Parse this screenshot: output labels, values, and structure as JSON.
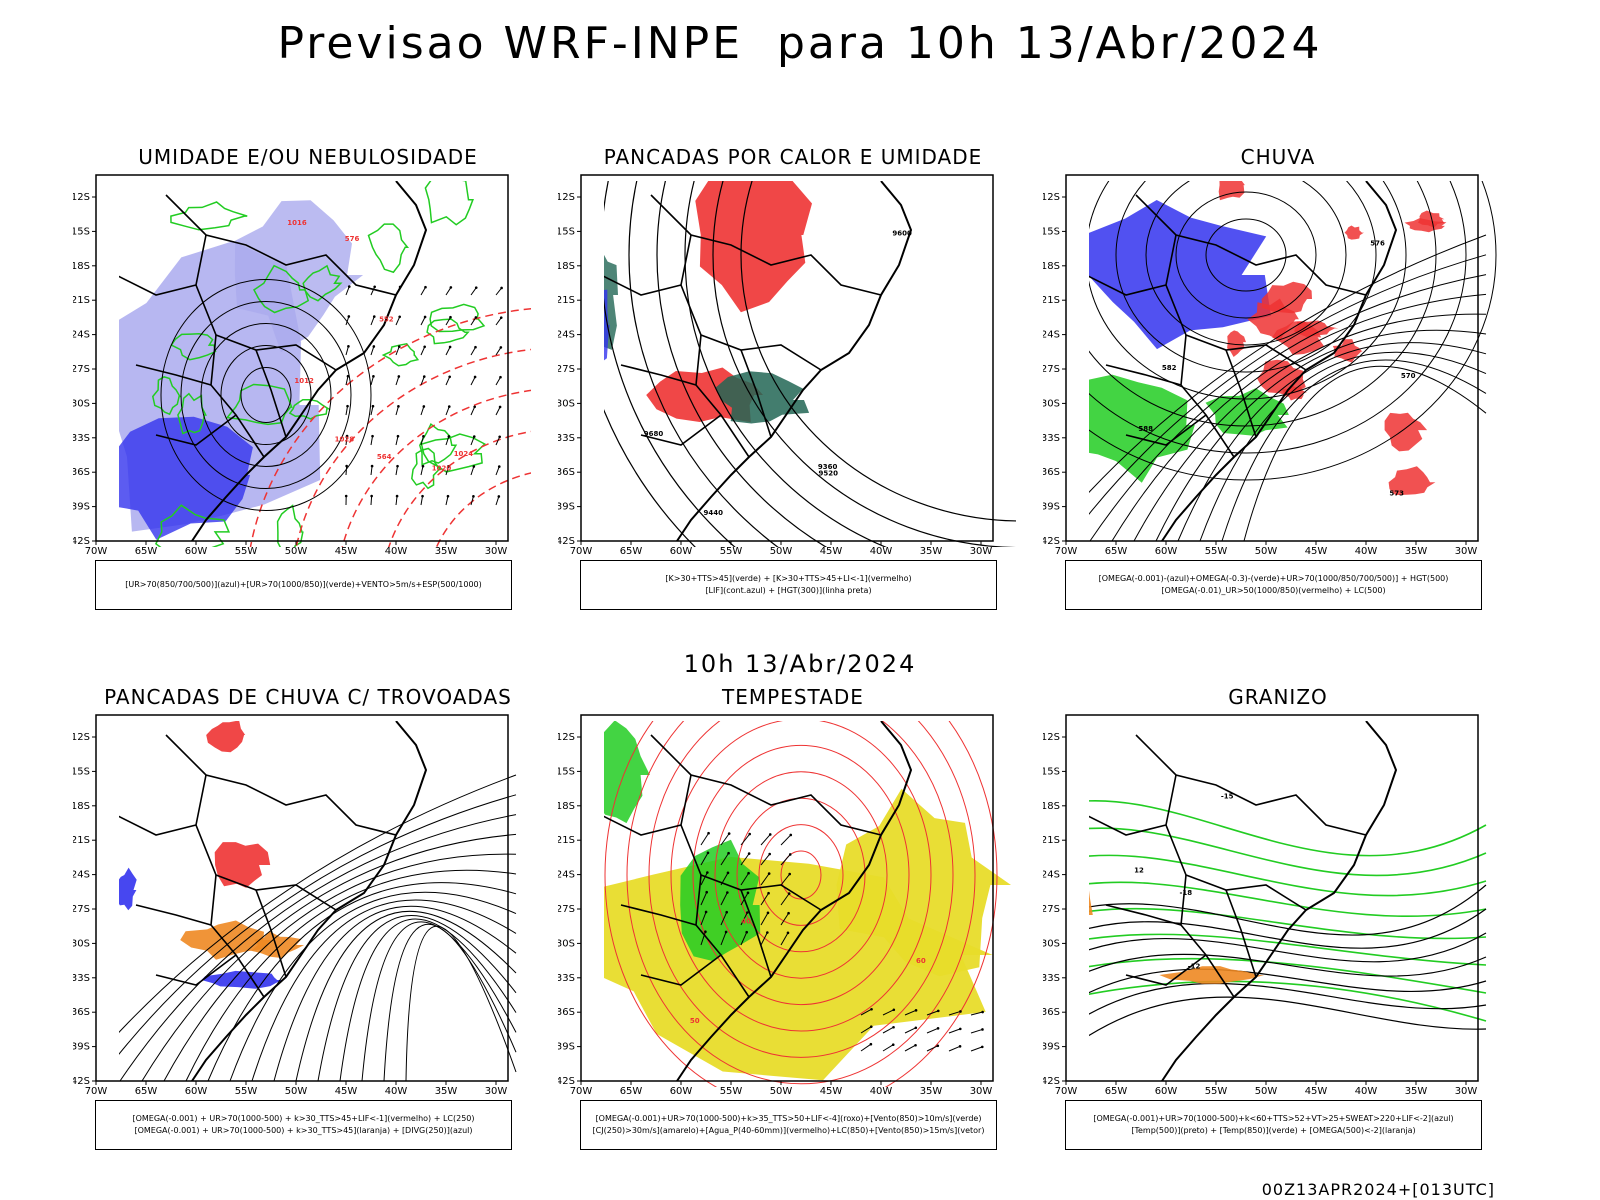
{
  "header": {
    "title": "Previsao WRF-INPE  para 10h 13/Abr/2024",
    "mid_time": "10h 13/Abr/2024",
    "run_stamp": "00Z13APR2024+[013UTC]"
  },
  "axes": {
    "lat_ticks": [
      "12S",
      "15S",
      "18S",
      "21S",
      "24S",
      "27S",
      "30S",
      "33S",
      "36S",
      "39S",
      "42S"
    ],
    "lon_ticks": [
      "70W",
      "65W",
      "60W",
      "55W",
      "50W",
      "45W",
      "40W",
      "35W",
      "30W"
    ]
  },
  "panels": [
    {
      "title": "UMIDADE E/OU NEBULOSIDADE",
      "legend": [
        "[UR>70(850/700/500)](azul)+[UR>70(1000/850)](verde)+VENTO>5m/s+ESP(500/1000)"
      ],
      "contour_labels": [
        "1012",
        "1016",
        "1020",
        "1024",
        "1028",
        "576",
        "564",
        "552"
      ]
    },
    {
      "title": "PANCADAS POR CALOR E UMIDADE",
      "legend": [
        "[K>30+TTS>45](verde) + [K>30+TTS>45+LI<-1](vermelho)",
        "[LIF](cont.azul) + [HGT(300)](linha preta)"
      ],
      "contour_labels": [
        "9680",
        "9600",
        "9520",
        "9440",
        "9360"
      ]
    },
    {
      "title": "CHUVA",
      "legend": [
        "[OMEGA(-0.001)-(azul)+OMEGA(-0.3)-(verde)+UR>70(1000/850/700/500)] + HGT(500)",
        "[OMEGA(-0.01)_UR>50(1000/850)(vermelho) + LC(500)"
      ],
      "contour_labels": [
        "588",
        "582",
        "576",
        "573",
        "570"
      ]
    },
    {
      "title": "PANCADAS DE CHUVA C/ TROVOADAS",
      "legend": [
        "[OMEGA(-0.001) + UR>70(1000-500) + k>30_TTS>45+LIF<-1](vermelho) + LC(250)",
        "[OMEGA(-0.001) + UR>70(1000-500) + k>30_TTS>45](laranja) + [DIVG(250)](azul)"
      ],
      "contour_labels": []
    },
    {
      "title": "TEMPESTADE",
      "legend": [
        "[OMEGA(-0.001)+UR>70(1000-500)+k>35_TTS>50+LIF<-4](roxo)+[Vento(850)>10m/s](verde)",
        "[CJ(250)>30m/s](amarelo)+[Agua_P(40-60mm)](vermelho)+LC(850)+[Vento(850)>15m/s](vetor)"
      ],
      "contour_labels": [
        "40",
        "50",
        "60"
      ]
    },
    {
      "title": "GRANIZO",
      "legend": [
        "[OMEGA(-0.001)+UR>70(1000-500)+k<60+TTS>52+VT>25+SWEAT>220+LIF<-2](azul)",
        "[Temp(500)](preto) + [Temp(850)](verde) + [OMEGA(500)<-2](laranja)"
      ],
      "contour_labels": [
        "-12",
        "-15",
        "-18",
        "12"
      ]
    }
  ],
  "colors": {
    "green": "#22cc22",
    "red": "#ee3333",
    "blue": "#3333ee",
    "lightblue": "#aaaaee",
    "teal": "#226655",
    "yellow": "#e8dc2a",
    "orange": "#ee8822"
  }
}
